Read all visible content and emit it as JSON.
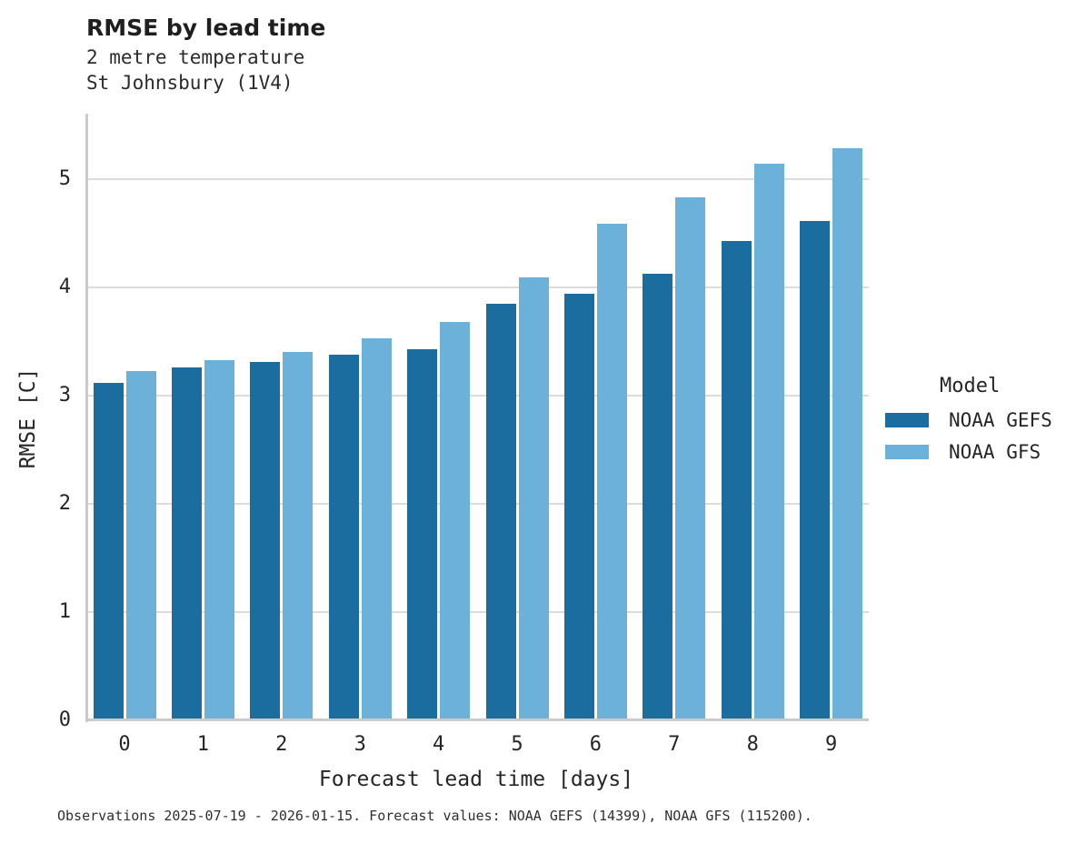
{
  "header": {
    "title": "RMSE by lead time",
    "subtitle1": "2 metre temperature",
    "subtitle2": "St Johnsbury (1V4)"
  },
  "axes": {
    "xlabel": "Forecast lead time [days]",
    "ylabel": "RMSE [C]"
  },
  "legend": {
    "title": "Model"
  },
  "footer": {
    "caption": "Observations 2025-07-19 - 2026-01-15. Forecast values: NOAA GEFS (14399), NOAA GFS (115200)."
  },
  "chart_data": {
    "type": "bar",
    "title": "RMSE by lead time",
    "subtitle": [
      "2 metre temperature",
      "St Johnsbury (1V4)"
    ],
    "categories": [
      "0",
      "1",
      "2",
      "3",
      "4",
      "5",
      "6",
      "7",
      "8",
      "9"
    ],
    "series": [
      {
        "name": "NOAA GEFS",
        "color": "#1a6d9e",
        "values": [
          3.12,
          3.26,
          3.31,
          3.38,
          3.43,
          3.85,
          3.94,
          4.13,
          4.43,
          4.61
        ]
      },
      {
        "name": "NOAA GFS",
        "color": "#6cb1d9",
        "values": [
          3.23,
          3.33,
          3.4,
          3.53,
          3.68,
          4.09,
          4.59,
          4.83,
          5.14,
          5.29
        ]
      }
    ],
    "xlabel": "Forecast lead time [days]",
    "ylabel": "RMSE [C]",
    "ylim": [
      0,
      5.6
    ],
    "yticks": [
      0,
      1,
      2,
      3,
      4,
      5
    ],
    "grid": true,
    "legend_title": "Model",
    "legend_position": "right",
    "caption": "Observations 2025-07-19 - 2026-01-15. Forecast values: NOAA GEFS (14399), NOAA GFS (115200)."
  }
}
